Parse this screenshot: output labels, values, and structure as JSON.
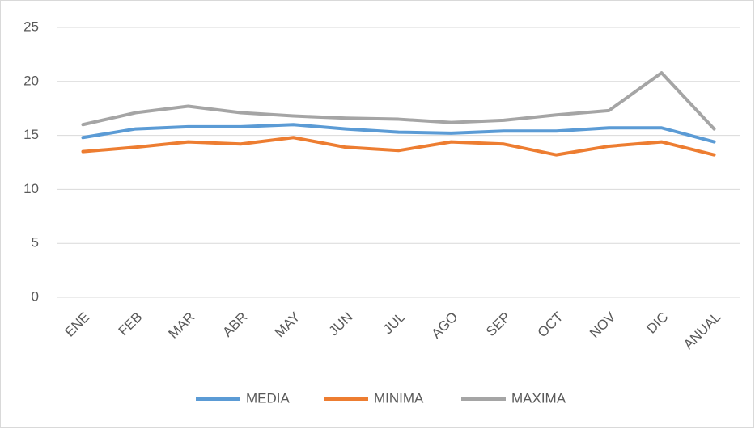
{
  "chart_data": {
    "type": "line",
    "categories": [
      "ENE",
      "FEB",
      "MAR",
      "ABR",
      "MAY",
      "JUN",
      "JUL",
      "AGO",
      "SEP",
      "OCT",
      "NOV",
      "DIC",
      "ANUAL"
    ],
    "series": [
      {
        "name": "MEDIA",
        "color": "#5b9bd5",
        "values": [
          14.8,
          15.6,
          15.8,
          15.8,
          16.0,
          15.6,
          15.3,
          15.2,
          15.4,
          15.4,
          15.7,
          15.7,
          14.4
        ]
      },
      {
        "name": "MINIMA",
        "color": "#ed7d31",
        "values": [
          13.5,
          13.9,
          14.4,
          14.2,
          14.8,
          13.9,
          13.6,
          14.4,
          14.2,
          13.2,
          14.0,
          14.4,
          13.2
        ]
      },
      {
        "name": "MAXIMA",
        "color": "#a5a5a5",
        "values": [
          16.0,
          17.1,
          17.7,
          17.1,
          16.8,
          16.6,
          16.5,
          16.2,
          16.4,
          16.9,
          17.3,
          20.8,
          15.6
        ]
      }
    ],
    "ylim": [
      0,
      25
    ],
    "yticks": [
      0,
      5,
      10,
      15,
      20,
      25
    ],
    "grid": true,
    "legend": "bottom"
  }
}
